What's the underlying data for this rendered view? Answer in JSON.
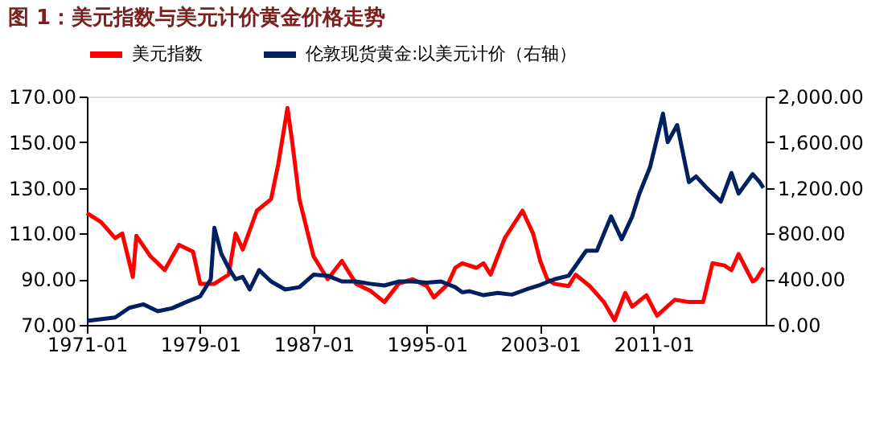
{
  "chart_data": {
    "type": "line",
    "title": "图 1：美元指数与美元计价黄金价格走势",
    "xlim": [
      "1971-01",
      "2018-12"
    ],
    "xticks": [
      "1971-01",
      "1979-01",
      "1987-01",
      "1995-01",
      "2003-01",
      "2011-01"
    ],
    "ylim": [
      70,
      170
    ],
    "yticks": [
      {
        "value": 70,
        "label": "70.00"
      },
      {
        "value": 90,
        "label": "90.00"
      },
      {
        "value": 110,
        "label": "110.00"
      },
      {
        "value": 130,
        "label": "130.00"
      },
      {
        "value": 150,
        "label": "150.00"
      },
      {
        "value": 170,
        "label": "170.00"
      }
    ],
    "y2lim": [
      0,
      2000
    ],
    "y2ticks": [
      {
        "value": 0,
        "label": "0.00"
      },
      {
        "value": 400,
        "label": "400.00"
      },
      {
        "value": 800,
        "label": "800.00"
      },
      {
        "value": 1200,
        "label": "1,200.00"
      },
      {
        "value": 1600,
        "label": "1,600.00"
      },
      {
        "value": 2000,
        "label": "2,000.00"
      }
    ],
    "grid": false,
    "legend": "top",
    "marker": "none",
    "line_style": "solid",
    "series": [
      {
        "name": "美元指数",
        "color": "#ff0000",
        "x": [
          "1971-01",
          "1972-01",
          "1973-01",
          "1973-07",
          "1974-04",
          "1974-07",
          "1975-07",
          "1976-07",
          "1977-07",
          "1978-07",
          "1979-01",
          "1980-01",
          "1981-01",
          "1981-07",
          "1982-01",
          "1983-01",
          "1984-01",
          "1984-07",
          "1985-03",
          "1985-07",
          "1986-01",
          "1987-01",
          "1988-01",
          "1989-01",
          "1990-01",
          "1991-01",
          "1992-01",
          "1993-01",
          "1994-01",
          "1995-01",
          "1995-07",
          "1996-07",
          "1997-01",
          "1997-07",
          "1998-07",
          "1999-01",
          "1999-07",
          "2000-07",
          "2001-10",
          "2002-07",
          "2003-01",
          "2003-07",
          "2004-01",
          "2005-01",
          "2005-07",
          "2006-07",
          "2007-07",
          "2008-04",
          "2009-01",
          "2009-07",
          "2010-07",
          "2011-04",
          "2012-07",
          "2013-07",
          "2014-07",
          "2015-03",
          "2016-01",
          "2016-07",
          "2017-01",
          "2017-07",
          "2018-01",
          "2018-04",
          "2018-10"
        ],
        "values": [
          119,
          115,
          108,
          110,
          91,
          109,
          100,
          94,
          105,
          102,
          88,
          88,
          92,
          110,
          103,
          120,
          125,
          140,
          165,
          150,
          125,
          100,
          90,
          98,
          88,
          85,
          80,
          88,
          90,
          87,
          82,
          88,
          95,
          97,
          95,
          97,
          92,
          108,
          120,
          110,
          98,
          90,
          88,
          87,
          92,
          87,
          80,
          72,
          84,
          78,
          83,
          74,
          81,
          80,
          80,
          97,
          96,
          94,
          101,
          95,
          89,
          90,
          95
        ]
      },
      {
        "name": "伦敦现货黄金:以美元计价（右轴）",
        "color": "#002060",
        "axis": "y2",
        "x": [
          "1971-01",
          "1973-01",
          "1974-01",
          "1975-01",
          "1976-01",
          "1977-01",
          "1978-01",
          "1979-01",
          "1979-10",
          "1980-01",
          "1980-07",
          "1981-01",
          "1981-07",
          "1982-01",
          "1982-07",
          "1983-03",
          "1984-01",
          "1985-01",
          "1986-01",
          "1987-01",
          "1988-01",
          "1989-01",
          "1990-01",
          "1991-01",
          "1992-01",
          "1993-01",
          "1994-01",
          "1995-01",
          "1996-01",
          "1997-01",
          "1997-07",
          "1998-01",
          "1999-01",
          "2000-01",
          "2001-01",
          "2002-01",
          "2003-01",
          "2004-01",
          "2005-01",
          "2006-04",
          "2007-01",
          "2008-01",
          "2008-10",
          "2009-07",
          "2010-01",
          "2010-10",
          "2011-09",
          "2012-01",
          "2012-09",
          "2013-04",
          "2013-07",
          "2014-01",
          "2014-10",
          "2015-10",
          "2016-07",
          "2017-01",
          "2018-01",
          "2018-07",
          "2018-10"
        ],
        "values": [
          35,
          65,
          150,
          180,
          120,
          145,
          200,
          250,
          400,
          850,
          620,
          500,
          400,
          420,
          310,
          480,
          380,
          310,
          330,
          440,
          430,
          380,
          380,
          360,
          345,
          380,
          380,
          370,
          380,
          330,
          285,
          295,
          260,
          280,
          265,
          310,
          350,
          400,
          430,
          650,
          650,
          950,
          750,
          950,
          1150,
          1380,
          1850,
          1600,
          1750,
          1400,
          1250,
          1300,
          1200,
          1080,
          1330,
          1150,
          1320,
          1250,
          1200
        ]
      }
    ]
  }
}
